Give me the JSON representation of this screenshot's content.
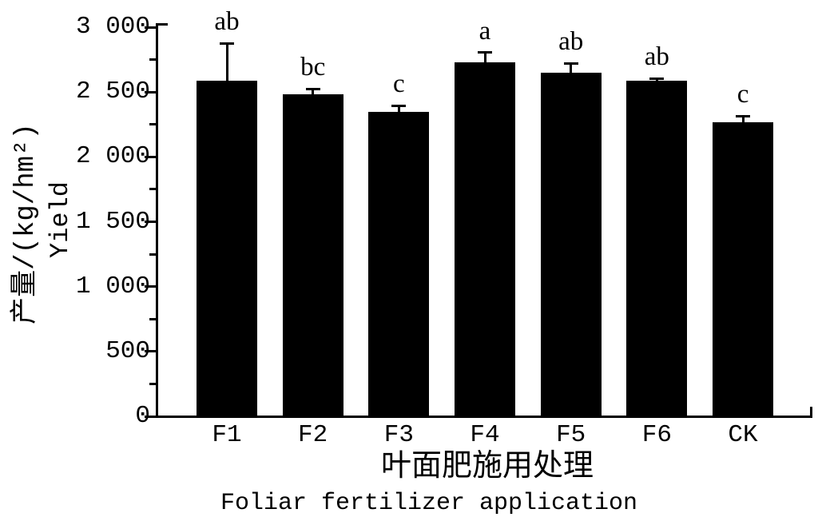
{
  "chart_data": {
    "type": "bar",
    "title": "",
    "categories": [
      "F1",
      "F2",
      "F3",
      "F4",
      "F5",
      "F6",
      "CK"
    ],
    "values": [
      2590,
      2480,
      2350,
      2730,
      2650,
      2585,
      2270
    ],
    "error_bars": [
      285,
      45,
      45,
      75,
      70,
      20,
      45
    ],
    "sig_letters": [
      "ab",
      "bc",
      "c",
      "a",
      "ab",
      "ab",
      "c"
    ],
    "y_axis": {
      "tick_labels": [
        "0",
        "500",
        "1 000",
        "1 500",
        "2 000",
        "2 500",
        "3 000"
      ],
      "tick_values": [
        0,
        500,
        1000,
        1500,
        2000,
        2500,
        3000
      ],
      "minor_tick_values": [
        250,
        750,
        1250,
        1750,
        2250,
        2750
      ],
      "ylim": [
        0,
        3000
      ],
      "label_cn": "产量/(kg/hm²)",
      "label_en": "Yield"
    },
    "x_axis": {
      "label_cn": "叶面肥施用处理",
      "label_en": "Foliar fertilizer application"
    },
    "bar_color": "#000000",
    "background_color": "#ffffff",
    "grid": false,
    "legend": null
  }
}
